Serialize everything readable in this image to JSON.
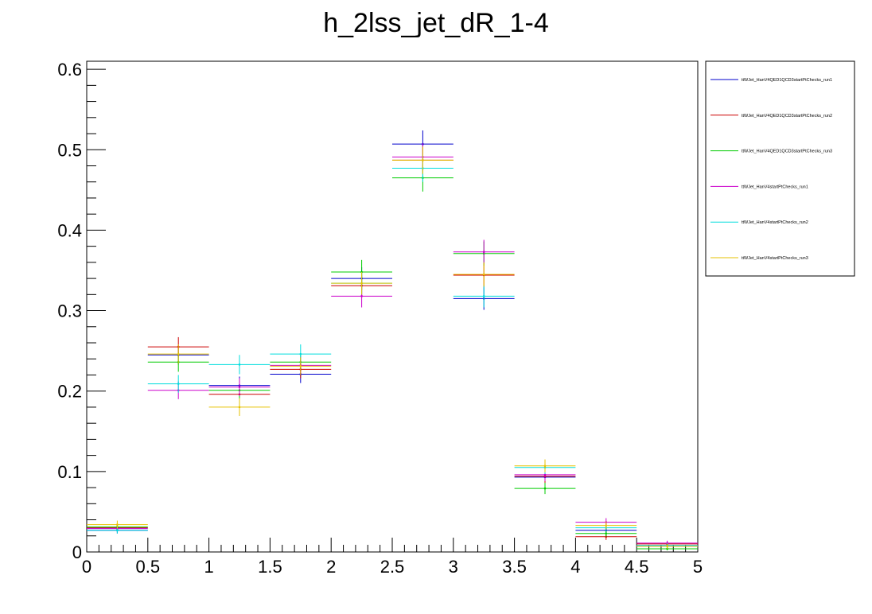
{
  "chart_data": {
    "type": "scatter",
    "title": "h_2lss_jet_dR_1-4",
    "xlabel": "",
    "ylabel": "",
    "xlim": [
      0,
      5
    ],
    "ylim": [
      0,
      0.61
    ],
    "x_ticks": [
      0,
      0.5,
      1,
      1.5,
      2,
      2.5,
      3,
      3.5,
      4,
      4.5,
      5
    ],
    "x_tick_labels": [
      "0",
      "0.5",
      "1",
      "1.5",
      "2",
      "2.5",
      "3",
      "3.5",
      "4",
      "4.5",
      "5"
    ],
    "y_ticks": [
      0,
      0.1,
      0.2,
      0.3,
      0.4,
      0.5,
      0.6
    ],
    "y_tick_labels": [
      "0",
      "0.1",
      "0.2",
      "0.3",
      "0.4",
      "0.5",
      "0.6"
    ],
    "grid": false,
    "legend_position": "right",
    "bin_edges": [
      0,
      0.5,
      1,
      1.5,
      2,
      2.5,
      3,
      3.5,
      4,
      4.5,
      5
    ],
    "series": [
      {
        "name": "ttWJet_HanV4QED1QCD3startPtChecks_run1",
        "color": "#0000cc",
        "values": [
          0.027,
          0.245,
          0.207,
          0.221,
          0.34,
          0.507,
          0.315,
          0.093,
          0.027,
          0.008
        ],
        "errors": [
          0.004,
          0.012,
          0.011,
          0.011,
          0.014,
          0.017,
          0.014,
          0.008,
          0.004,
          0.003
        ]
      },
      {
        "name": "ttWJet_HanV4QED1QCD3startPtChecks_run2",
        "color": "#cc0000",
        "values": [
          0.03,
          0.255,
          0.196,
          0.227,
          0.331,
          0.487,
          0.344,
          0.094,
          0.019,
          0.01
        ],
        "errors": [
          0.004,
          0.012,
          0.011,
          0.011,
          0.014,
          0.017,
          0.015,
          0.008,
          0.004,
          0.003
        ]
      },
      {
        "name": "ttWJet_HanV4QED1QCD3startPtChecks_run3",
        "color": "#00cc00",
        "values": [
          0.031,
          0.236,
          0.201,
          0.236,
          0.348,
          0.465,
          0.371,
          0.079,
          0.023,
          0.004
        ],
        "errors": [
          0.004,
          0.012,
          0.011,
          0.011,
          0.015,
          0.017,
          0.015,
          0.007,
          0.004,
          0.002
        ]
      },
      {
        "name": "ttWJet_HanV4startPtChecks_run1",
        "color": "#cc00cc",
        "values": [
          0.029,
          0.201,
          0.205,
          0.232,
          0.318,
          0.491,
          0.373,
          0.096,
          0.037,
          0.011
        ],
        "errors": [
          0.004,
          0.011,
          0.011,
          0.011,
          0.014,
          0.017,
          0.015,
          0.008,
          0.005,
          0.003
        ]
      },
      {
        "name": "ttWJet_HanV4startPtChecks_run2",
        "color": "#00dddd",
        "values": [
          0.027,
          0.209,
          0.233,
          0.246,
          0.334,
          0.477,
          0.318,
          0.105,
          0.03,
          0.008
        ],
        "errors": [
          0.004,
          0.011,
          0.012,
          0.012,
          0.014,
          0.017,
          0.014,
          0.008,
          0.004,
          0.003
        ]
      },
      {
        "name": "ttWJet_HanV4startPtChecks_run3",
        "color": "#e6c200",
        "values": [
          0.034,
          0.246,
          0.18,
          0.231,
          0.334,
          0.487,
          0.345,
          0.107,
          0.033,
          0.007
        ],
        "errors": [
          0.005,
          0.012,
          0.011,
          0.011,
          0.014,
          0.017,
          0.015,
          0.008,
          0.005,
          0.003
        ]
      }
    ]
  }
}
